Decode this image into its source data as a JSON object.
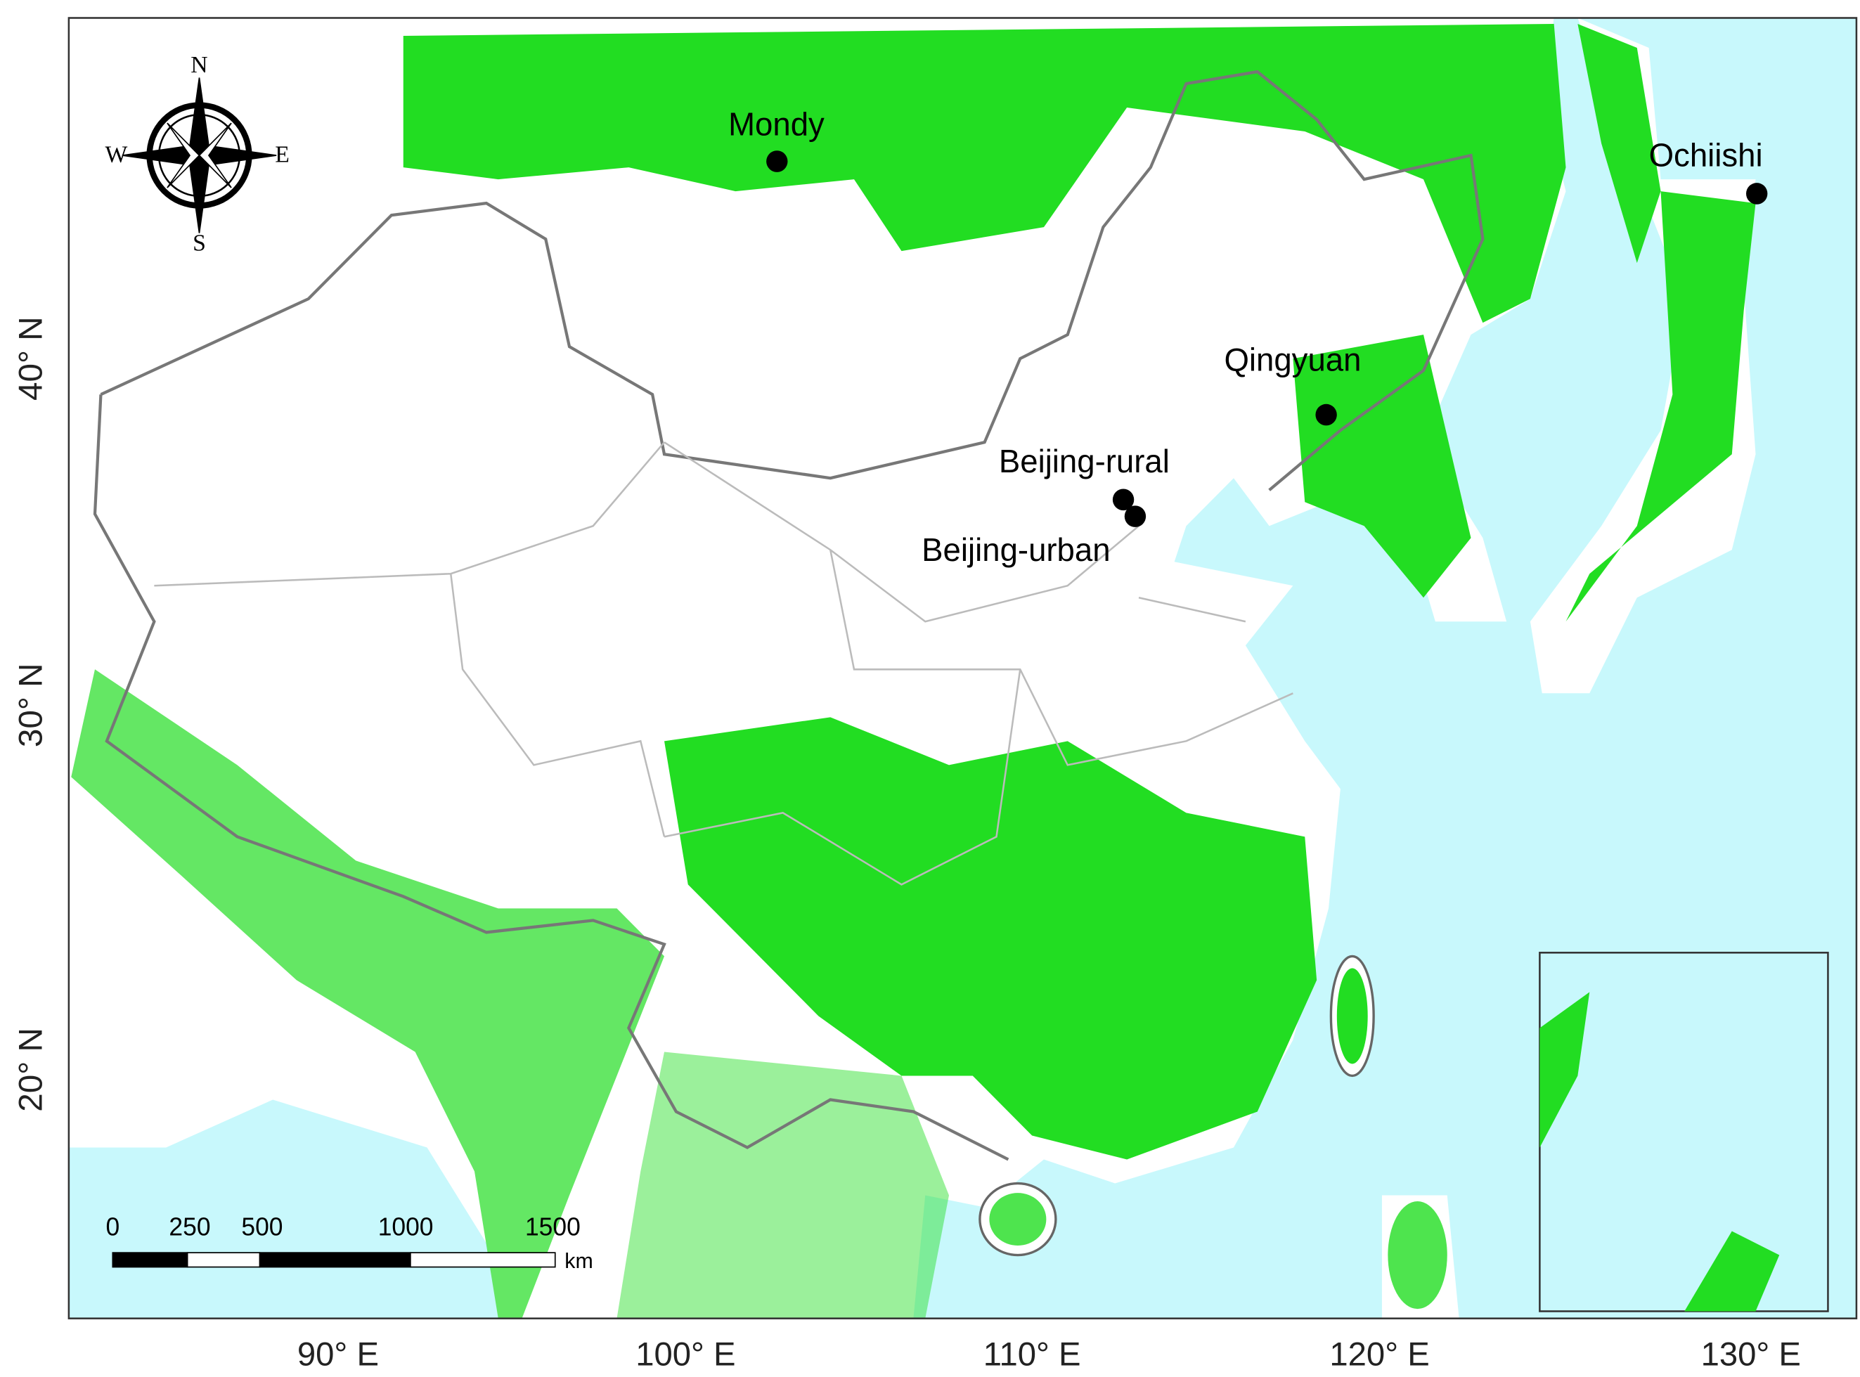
{
  "map": {
    "stations": [
      {
        "label": "Mondy"
      },
      {
        "label": "Ochiishi"
      },
      {
        "label": "Qingyuan"
      },
      {
        "label": "Beijing-rural"
      },
      {
        "label": "Beijing-urban"
      }
    ],
    "latitude_labels": [
      "40° N",
      "30° N",
      "20° N"
    ],
    "longitude_labels": [
      "90° E",
      "100° E",
      "110° E",
      "120° E",
      "130° E"
    ],
    "compass": {
      "north": "N",
      "south": "S",
      "west": "W",
      "east": "E"
    },
    "scale_bar": {
      "labels": [
        "0",
        "250",
        "500",
        "1000",
        "1500"
      ],
      "unit": "km"
    }
  }
}
